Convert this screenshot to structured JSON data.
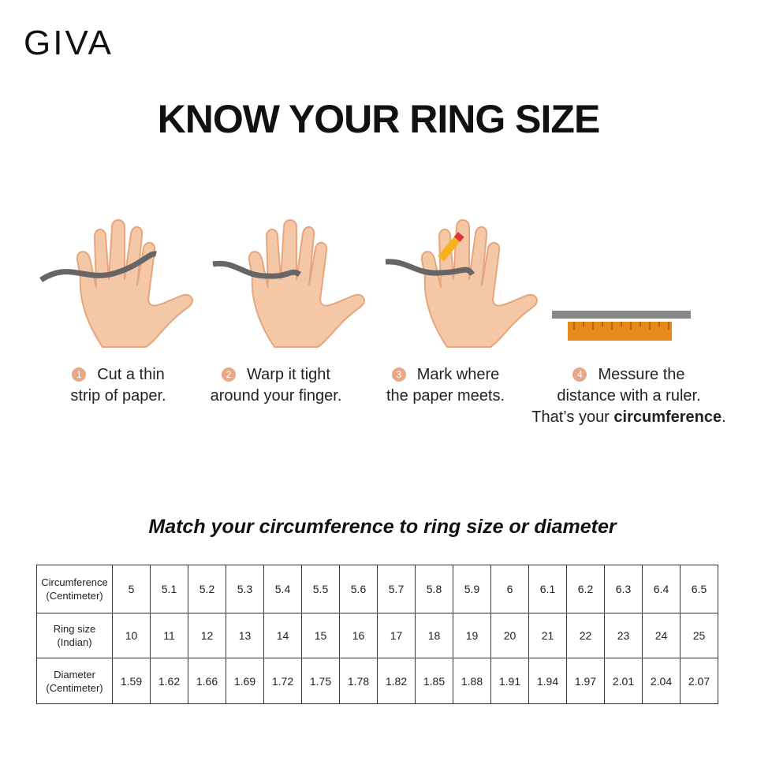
{
  "brand": "GIVA",
  "title": "KNOW YOUR RING SIZE",
  "steps": [
    {
      "num": "1",
      "line1": "Cut a thin",
      "line2": "strip of paper."
    },
    {
      "num": "2",
      "line1": "Warp it tight",
      "line2": "around your finger."
    },
    {
      "num": "3",
      "line1": "Mark where",
      "line2": "the paper meets."
    },
    {
      "num": "4",
      "line1": "Messure the",
      "line2": "distance with a ruler.",
      "line3_prefix": "That’s your ",
      "line3_bold": "circumference",
      "line3_suffix": "."
    }
  ],
  "subtitle": "Match your circumference to ring size or diameter",
  "table": {
    "rows": [
      {
        "label1": "Circumference",
        "label2": "(Centimeter)",
        "values": [
          "5",
          "5.1",
          "5.2",
          "5.3",
          "5.4",
          "5.5",
          "5.6",
          "5.7",
          "5.8",
          "5.9",
          "6",
          "6.1",
          "6.2",
          "6.3",
          "6.4",
          "6.5"
        ]
      },
      {
        "label1": "Ring size",
        "label2": "(Indian)",
        "values": [
          "10",
          "11",
          "12",
          "13",
          "14",
          "15",
          "16",
          "17",
          "18",
          "19",
          "20",
          "21",
          "22",
          "23",
          "24",
          "25"
        ]
      },
      {
        "label1": "Diameter",
        "label2": "(Centimeter)",
        "values": [
          "1.59",
          "1.62",
          "1.66",
          "1.69",
          "1.72",
          "1.75",
          "1.78",
          "1.82",
          "1.85",
          "1.88",
          "1.91",
          "1.94",
          "1.97",
          "2.01",
          "2.04",
          "2.07"
        ]
      }
    ]
  },
  "colors": {
    "skin": "#f4c8a6",
    "skin_outline": "#e6a57c",
    "paper": "#666666",
    "ruler": "#e8891c",
    "step_badge": "#e8a886"
  }
}
